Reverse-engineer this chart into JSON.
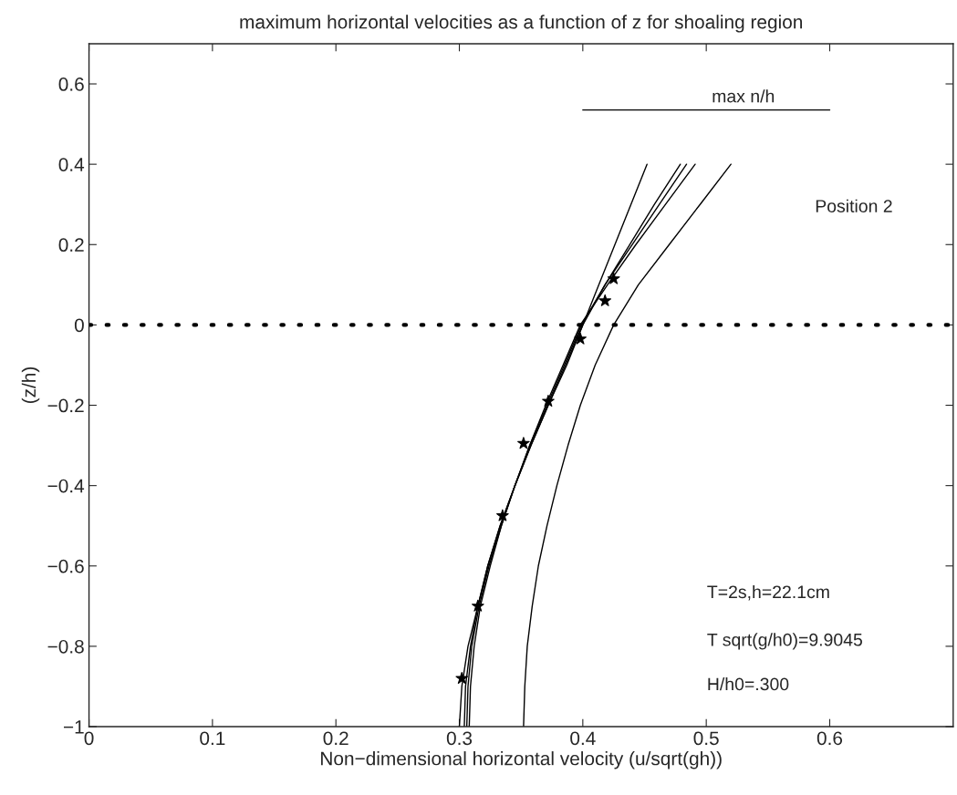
{
  "chart_data": {
    "type": "line",
    "title": "maximum horizontal velocities as a function of z for shoaling region",
    "xlabel": "Non−dimensional horizontal velocity (u/sqrt(gh))",
    "ylabel": "(z/h)",
    "xlim": [
      0,
      0.7
    ],
    "ylim": [
      -1,
      0.7
    ],
    "xticks": [
      0,
      0.1,
      0.2,
      0.3,
      0.4,
      0.5,
      0.6
    ],
    "yticks": [
      {
        "value": -1,
        "label": "−1"
      },
      {
        "value": -0.8,
        "label": "−0.8"
      },
      {
        "value": -0.6,
        "label": "−0.6"
      },
      {
        "value": -0.4,
        "label": "−0.4"
      },
      {
        "value": -0.2,
        "label": "−0.2"
      },
      0,
      0.2,
      0.4,
      0.6
    ],
    "grid": false,
    "legend": false,
    "series": [
      {
        "color": "#000000",
        "line_style": "solid",
        "marker": "none",
        "x": [
          0.352,
          0.353,
          0.355,
          0.359,
          0.364,
          0.371,
          0.379,
          0.388,
          0.398,
          0.41,
          0.425,
          0.445,
          0.47,
          0.495,
          0.52
        ],
        "values": [
          -1,
          -0.9,
          -0.8,
          -0.7,
          -0.6,
          -0.5,
          -0.4,
          -0.3,
          -0.2,
          -0.1,
          0,
          0.1,
          0.2,
          0.3,
          0.4
        ]
      },
      {
        "color": "#000000",
        "line_style": "solid",
        "marker": "none",
        "x": [
          0.3,
          0.302,
          0.307,
          0.315,
          0.323,
          0.333,
          0.345,
          0.358,
          0.372,
          0.387,
          0.4,
          0.413,
          0.426,
          0.439,
          0.452
        ],
        "values": [
          -1,
          -0.9,
          -0.8,
          -0.7,
          -0.6,
          -0.5,
          -0.4,
          -0.3,
          -0.2,
          -0.1,
          0,
          0.1,
          0.2,
          0.3,
          0.4
        ]
      },
      {
        "color": "#000000",
        "line_style": "solid",
        "marker": "none",
        "x": [
          0.304,
          0.305,
          0.309,
          0.315,
          0.323,
          0.333,
          0.345,
          0.358,
          0.372,
          0.386,
          0.4,
          0.418,
          0.438,
          0.458,
          0.479
        ],
        "values": [
          -1,
          -0.9,
          -0.8,
          -0.7,
          -0.6,
          -0.5,
          -0.4,
          -0.3,
          -0.2,
          -0.1,
          0,
          0.1,
          0.2,
          0.3,
          0.4
        ]
      },
      {
        "color": "#000000",
        "line_style": "solid",
        "marker": "none",
        "x": [
          0.306,
          0.307,
          0.31,
          0.316,
          0.324,
          0.334,
          0.345,
          0.357,
          0.371,
          0.385,
          0.399,
          0.418,
          0.44,
          0.462,
          0.484
        ],
        "values": [
          -1,
          -0.9,
          -0.8,
          -0.7,
          -0.6,
          -0.5,
          -0.4,
          -0.3,
          -0.2,
          -0.1,
          0,
          0.1,
          0.2,
          0.3,
          0.4
        ]
      },
      {
        "color": "#000000",
        "line_style": "solid",
        "marker": "none",
        "x": [
          0.308,
          0.309,
          0.312,
          0.317,
          0.325,
          0.334,
          0.345,
          0.357,
          0.37,
          0.384,
          0.398,
          0.42,
          0.443,
          0.467,
          0.491
        ],
        "values": [
          -1,
          -0.9,
          -0.8,
          -0.7,
          -0.6,
          -0.5,
          -0.4,
          -0.3,
          -0.2,
          -0.1,
          0,
          0.1,
          0.2,
          0.3,
          0.4
        ]
      },
      {
        "type": "scatter",
        "color": "#000000",
        "marker": "star",
        "x": [
          0.302,
          0.315,
          0.335,
          0.352,
          0.372,
          0.398,
          0.418,
          0.425
        ],
        "values": [
          -0.88,
          -0.7,
          -0.475,
          -0.295,
          -0.19,
          -0.035,
          0.06,
          0.115
        ]
      },
      {
        "name": "max n/h",
        "color": "#000000",
        "line_style": "solid",
        "marker": "none",
        "x": [
          0.4,
          0.6
        ],
        "values": [
          0.535,
          0.535
        ]
      }
    ],
    "ref_lines": [
      {
        "axis": "y",
        "value": 0,
        "color": "#000000",
        "line_style": "dotted"
      }
    ],
    "annotations": [
      "Position 2",
      "T=2s,h=22.1cm",
      "T sqrt(g/h0)=9.9045",
      "H/h0=.300"
    ]
  }
}
